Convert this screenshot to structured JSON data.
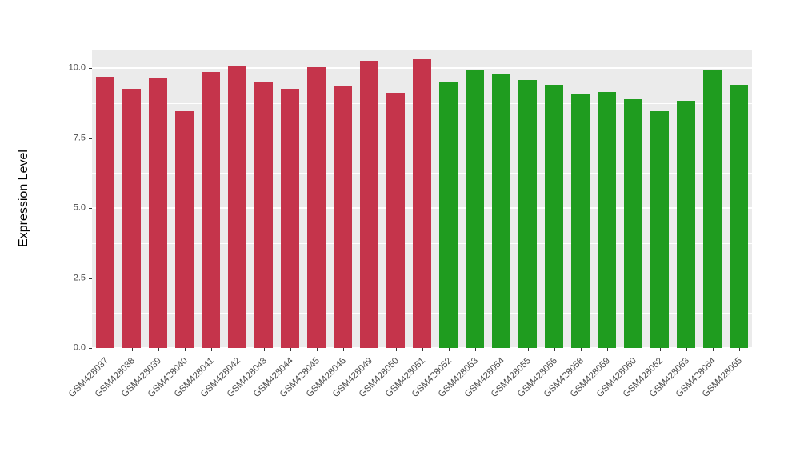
{
  "chart_data": {
    "type": "bar",
    "title": "",
    "xlabel": "",
    "ylabel": "Expression Level",
    "ylim": [
      0,
      10.66
    ],
    "yticks": [
      "0.0",
      "2.5",
      "5.0",
      "7.5",
      "10.0"
    ],
    "ytick_values": [
      0,
      2.5,
      5,
      7.5,
      10
    ],
    "yminor_values": [
      1.25,
      3.75,
      6.25,
      8.75
    ],
    "grid": "on",
    "legend_position": "none",
    "panel_background": "#EBEBEB",
    "gridline_color": "#FFFFFF",
    "axis_text_color": "#4D4D4D",
    "categories": [
      "GSM428037",
      "GSM428038",
      "GSM428039",
      "GSM428040",
      "GSM428041",
      "GSM428042",
      "GSM428043",
      "GSM428044",
      "GSM428045",
      "GSM428046",
      "GSM428049",
      "GSM428050",
      "GSM428051",
      "GSM428052",
      "GSM428053",
      "GSM428054",
      "GSM428055",
      "GSM428056",
      "GSM428058",
      "GSM428059",
      "GSM428060",
      "GSM428062",
      "GSM428063",
      "GSM428064",
      "GSM428065"
    ],
    "values": [
      9.68,
      9.25,
      9.66,
      8.45,
      9.86,
      10.06,
      9.51,
      9.25,
      10.03,
      9.37,
      10.26,
      9.11,
      10.31,
      9.48,
      9.94,
      9.77,
      9.57,
      9.4,
      9.05,
      9.14,
      8.88,
      8.45,
      8.82,
      9.91,
      9.4
    ],
    "bar_groups": [
      "red",
      "red",
      "red",
      "red",
      "red",
      "red",
      "red",
      "red",
      "red",
      "red",
      "red",
      "red",
      "red",
      "green",
      "green",
      "green",
      "green",
      "green",
      "green",
      "green",
      "green",
      "green",
      "green",
      "green",
      "green"
    ],
    "group_colors": {
      "red": "#C5344B",
      "green": "#1F9C1F"
    }
  }
}
